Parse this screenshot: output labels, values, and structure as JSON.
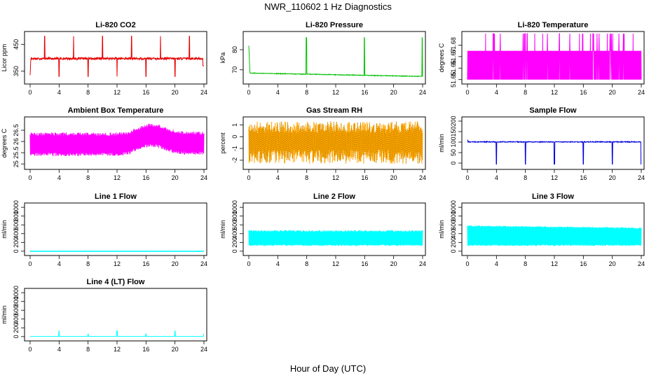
{
  "figure": {
    "title": "NWR_110602  1 Hz Diagnostics",
    "xlabel": "Hour of Day (UTC)"
  },
  "chart_data": [
    {
      "type": "line",
      "title": "Li-820 CO2",
      "ylabel": "Licor ppm",
      "color": "#e60000",
      "xlim": [
        0,
        24
      ],
      "xticks": [
        0,
        4,
        8,
        12,
        16,
        20,
        24
      ],
      "ylim": [
        310,
        490
      ],
      "yticks": [
        350,
        450
      ],
      "pattern": "co2"
    },
    {
      "type": "line",
      "title": "Li-820 Pressure",
      "ylabel": "kPa",
      "color": "#00c000",
      "xlim": [
        0,
        24
      ],
      "xticks": [
        0,
        4,
        8,
        12,
        16,
        20,
        24
      ],
      "ylim": [
        64,
        88
      ],
      "yticks": [
        70,
        80
      ],
      "pattern": "pressure"
    },
    {
      "type": "line",
      "title": "Li-820 Temperature",
      "ylabel": "degrees C",
      "color": "#ff00ff",
      "xlim": [
        0,
        24
      ],
      "xticks": [
        0,
        4,
        8,
        12,
        16,
        20,
        24
      ],
      "ylim": [
        51.648,
        51.69
      ],
      "yticks": [
        51.65,
        51.66,
        51.67,
        51.68
      ],
      "pattern": "temp820"
    },
    {
      "type": "line",
      "title": "Ambient Box Temperature",
      "ylabel": "degrees C",
      "color": "#ff00ff",
      "xlim": [
        0,
        24
      ],
      "xticks": [
        0,
        4,
        8,
        12,
        16,
        20,
        24
      ],
      "ylim": [
        24.85,
        27.0
      ],
      "yticks": [
        25.0,
        25.5,
        26.0,
        26.5
      ],
      "pattern": "ambient"
    },
    {
      "type": "line",
      "title": "Gas Stream RH",
      "ylabel": "percent",
      "color": "#ffa500",
      "color2": "#806000",
      "xlim": [
        0,
        24
      ],
      "xticks": [
        0,
        4,
        8,
        12,
        16,
        20,
        24
      ],
      "ylim": [
        -2.6,
        1.5
      ],
      "yticks": [
        -2,
        -1,
        0,
        1
      ],
      "pattern": "rh"
    },
    {
      "type": "line",
      "title": "Sample Flow",
      "ylabel": "ml/min",
      "color": "#0000e0",
      "xlim": [
        0,
        24
      ],
      "xticks": [
        0,
        4,
        8,
        12,
        16,
        20,
        24
      ],
      "ylim": [
        -20,
        210
      ],
      "yticks": [
        0,
        50,
        100,
        150,
        200
      ],
      "pattern": "sample"
    },
    {
      "type": "line",
      "title": "Line 1 Flow",
      "ylabel": "ml/min",
      "color": "#00ffff",
      "xlim": [
        0,
        24
      ],
      "xticks": [
        0,
        4,
        8,
        12,
        16,
        20,
        24
      ],
      "ylim": [
        -50,
        1050
      ],
      "yticks": [
        0,
        200,
        400,
        600,
        800,
        1000
      ],
      "pattern": "line1"
    },
    {
      "type": "line",
      "title": "Line 2 Flow",
      "ylabel": "ml/min",
      "color": "#00ffff",
      "xlim": [
        0,
        24
      ],
      "xticks": [
        0,
        4,
        8,
        12,
        16,
        20,
        24
      ],
      "ylim": [
        -50,
        1050
      ],
      "yticks": [
        0,
        200,
        400,
        600,
        800,
        1000
      ],
      "pattern": "line2"
    },
    {
      "type": "line",
      "title": "Line 3 Flow",
      "ylabel": "ml/min",
      "color": "#00ffff",
      "xlim": [
        0,
        24
      ],
      "xticks": [
        0,
        4,
        8,
        12,
        16,
        20,
        24
      ],
      "ylim": [
        -50,
        1050
      ],
      "yticks": [
        0,
        200,
        400,
        600,
        800,
        1000
      ],
      "pattern": "line3"
    },
    {
      "type": "line",
      "title": "Line 4 (LT) Flow",
      "ylabel": "ml/min",
      "color": "#00ffff",
      "xlim": [
        0,
        24
      ],
      "xticks": [
        0,
        4,
        8,
        12,
        16,
        20,
        24
      ],
      "ylim": [
        -50,
        1050
      ],
      "yticks": [
        0,
        200,
        400,
        600,
        800,
        1000
      ],
      "pattern": "line4"
    }
  ]
}
